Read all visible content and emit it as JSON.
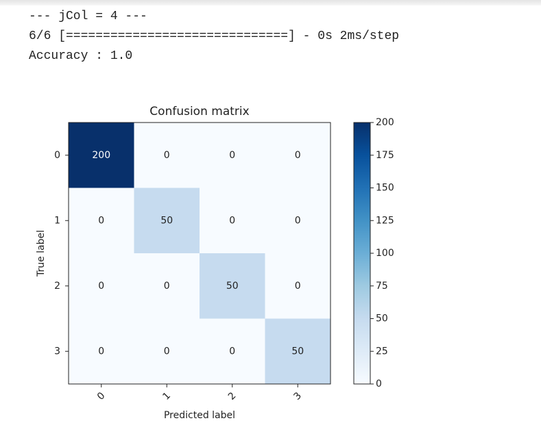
{
  "output": {
    "lines": [
      "--- jCol = 4 ---",
      "6/6 [==============================] - 0s 2ms/step",
      "Accuracy : 1.0"
    ]
  },
  "chart_data": {
    "type": "heatmap",
    "title": "Confusion matrix",
    "xlabel": "Predicted label",
    "ylabel": "True label",
    "x_categories": [
      "0",
      "1",
      "2",
      "3"
    ],
    "y_categories": [
      "0",
      "1",
      "2",
      "3"
    ],
    "values": [
      [
        200,
        0,
        0,
        0
      ],
      [
        0,
        50,
        0,
        0
      ],
      [
        0,
        0,
        50,
        0
      ],
      [
        0,
        0,
        0,
        50
      ]
    ],
    "colormap": "Blues",
    "clim": [
      0,
      200
    ],
    "colorbar_ticks": [
      0,
      25,
      50,
      75,
      100,
      125,
      150,
      175,
      200
    ]
  }
}
